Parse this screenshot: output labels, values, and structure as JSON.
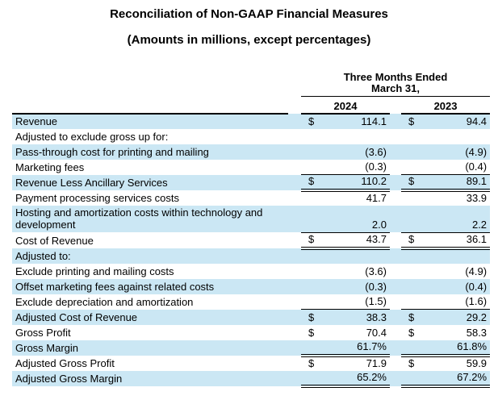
{
  "title": "Reconciliation of Non-GAAP Financial Measures",
  "subtitle": "(Amounts in millions, except percentages)",
  "colors": {
    "row_shading": "#cbe7f4",
    "text": "#000000",
    "background": "#ffffff"
  },
  "table": {
    "period_header_line1": "Three Months Ended",
    "period_header_line2": "March 31,",
    "columns": [
      "2024",
      "2023"
    ],
    "currency_symbol": "$",
    "rows": [
      {
        "label": "Revenue",
        "dollar": true,
        "values": [
          "114.1",
          "94.4"
        ],
        "shaded": true,
        "underline": "none"
      },
      {
        "label": "Adjusted to exclude gross up for:",
        "dollar": false,
        "values": [
          "",
          ""
        ],
        "shaded": false,
        "underline": "none"
      },
      {
        "label": "Pass-through cost for printing and mailing",
        "dollar": false,
        "values": [
          "(3.6)",
          "(4.9)"
        ],
        "shaded": true,
        "underline": "none"
      },
      {
        "label": "Marketing fees",
        "dollar": false,
        "values": [
          "(0.3)",
          "(0.4)"
        ],
        "shaded": false,
        "underline": "single"
      },
      {
        "label": "Revenue Less Ancillary Services",
        "dollar": true,
        "values": [
          "110.2",
          "89.1"
        ],
        "shaded": true,
        "underline": "double"
      },
      {
        "label": "Payment processing services costs",
        "dollar": false,
        "values": [
          "41.7",
          "33.9"
        ],
        "shaded": false,
        "underline": "none"
      },
      {
        "label": "Hosting and amortization costs within technology and development",
        "dollar": false,
        "values": [
          "2.0",
          "2.2"
        ],
        "shaded": true,
        "underline": "single"
      },
      {
        "label": "Cost of Revenue",
        "dollar": true,
        "values": [
          "43.7",
          "36.1"
        ],
        "shaded": false,
        "underline": "double"
      },
      {
        "label": "Adjusted to:",
        "dollar": false,
        "values": [
          "",
          ""
        ],
        "shaded": true,
        "underline": "none"
      },
      {
        "label": "Exclude printing and mailing costs",
        "dollar": false,
        "values": [
          "(3.6)",
          "(4.9)"
        ],
        "shaded": false,
        "underline": "none"
      },
      {
        "label": "Offset marketing fees against related costs",
        "dollar": false,
        "values": [
          "(0.3)",
          "(0.4)"
        ],
        "shaded": true,
        "underline": "none"
      },
      {
        "label": "Exclude depreciation and amortization",
        "dollar": false,
        "values": [
          "(1.5)",
          "(1.6)"
        ],
        "shaded": false,
        "underline": "single"
      },
      {
        "label": "Adjusted Cost of Revenue",
        "dollar": true,
        "values": [
          "38.3",
          "29.2"
        ],
        "shaded": true,
        "underline": "none"
      },
      {
        "label": "Gross Profit",
        "dollar": true,
        "values": [
          "70.4",
          "58.3"
        ],
        "shaded": false,
        "underline": "none"
      },
      {
        "label": "Gross Margin",
        "dollar": false,
        "values": [
          "61.7%",
          "61.8%"
        ],
        "shaded": true,
        "underline": "double"
      },
      {
        "label": "Adjusted Gross Profit",
        "dollar": true,
        "values": [
          "71.9",
          "59.9"
        ],
        "shaded": false,
        "underline": "none"
      },
      {
        "label": "Adjusted Gross Margin",
        "dollar": false,
        "values": [
          "65.2%",
          "67.2%"
        ],
        "shaded": true,
        "underline": "double"
      }
    ]
  }
}
